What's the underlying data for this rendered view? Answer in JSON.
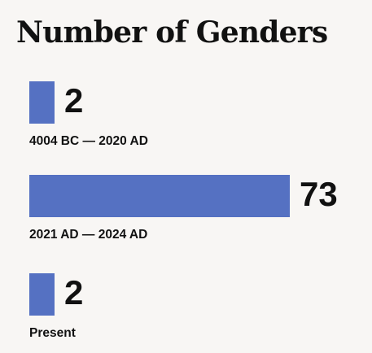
{
  "chart_data": {
    "type": "bar",
    "orientation": "horizontal",
    "title": "Number of Genders",
    "xlabel": "",
    "ylabel": "",
    "categories": [
      "4004 BC — 2020 AD",
      "2021 AD — 2024 AD",
      "Present"
    ],
    "values": [
      2,
      73,
      2
    ],
    "value_labels": [
      "2",
      "73",
      "2"
    ],
    "xlim": [
      0,
      73
    ],
    "grid": false,
    "legend": "none",
    "bar_color": "#5571c2",
    "background_color": "#f8f6f4",
    "text_color": "#111111"
  }
}
